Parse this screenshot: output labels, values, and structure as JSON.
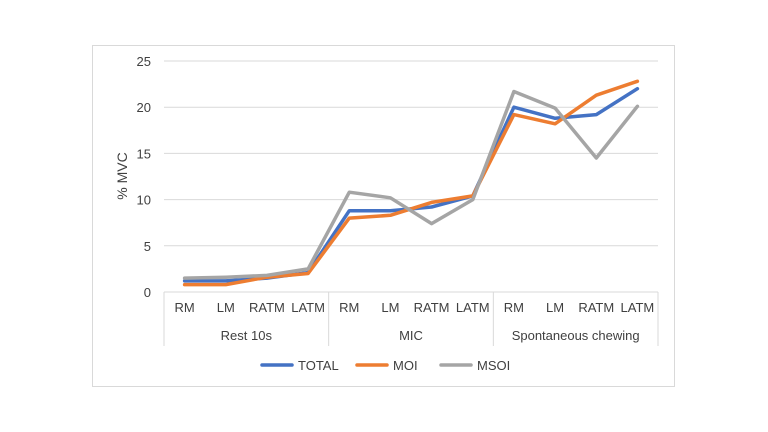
{
  "chart_data": {
    "type": "line",
    "title": "",
    "xlabel": "",
    "ylabel": "% MVC",
    "ylim": [
      0,
      25
    ],
    "yticks": [
      0,
      5,
      10,
      15,
      20,
      25
    ],
    "grid": true,
    "legend_position": "bottom",
    "groups": [
      {
        "name": "Rest 10s",
        "categories": [
          "RM",
          "LM",
          "RATM",
          "LATM"
        ]
      },
      {
        "name": "MIC",
        "categories": [
          "RM",
          "LM",
          "RATM",
          "LATM"
        ]
      },
      {
        "name": "Spontaneous chewing",
        "categories": [
          "RM",
          "LM",
          "RATM",
          "LATM"
        ]
      }
    ],
    "series": [
      {
        "name": "TOTAL",
        "color": "#4472C4",
        "values": [
          1.2,
          1.2,
          1.5,
          2.1,
          8.8,
          8.8,
          9.2,
          10.4,
          20.0,
          18.8,
          19.2,
          22.0
        ]
      },
      {
        "name": "MOI",
        "color": "#ED7D31",
        "values": [
          0.8,
          0.8,
          1.6,
          2.0,
          8.0,
          8.3,
          9.7,
          10.4,
          19.2,
          18.2,
          21.3,
          22.8
        ]
      },
      {
        "name": "MSOI",
        "color": "#A5A5A5",
        "values": [
          1.5,
          1.6,
          1.8,
          2.5,
          10.8,
          10.2,
          7.4,
          10.0,
          21.7,
          19.9,
          14.5,
          20.1
        ]
      }
    ]
  }
}
